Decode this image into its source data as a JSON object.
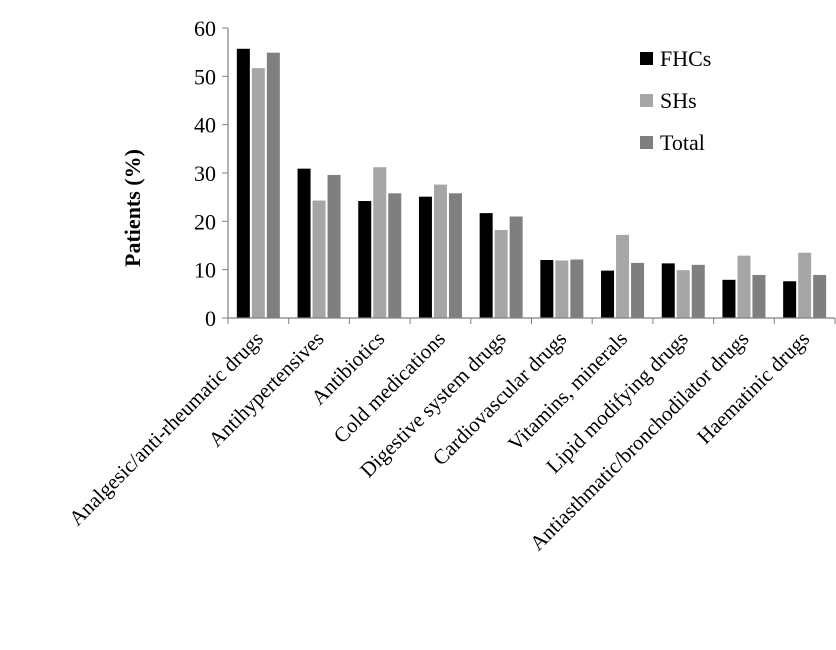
{
  "chart_data": {
    "type": "bar",
    "ylabel": "Patients (%)",
    "xlabel": "",
    "ylim": [
      0,
      60
    ],
    "yticks": [
      0,
      10,
      20,
      30,
      40,
      50,
      60
    ],
    "grid": false,
    "legend_position": "top-right",
    "categories": [
      "Analgesic/anti-rheumatic drugs",
      "Antihypertensives",
      "Antibiotics",
      "Cold medications",
      "Digestive system drugs",
      "Cardiovascular drugs",
      "Vitamins, minerals",
      "Lipid modifying drugs",
      "Antiasthmatic/bronchodilator drugs",
      "Haematinic drugs"
    ],
    "series": [
      {
        "name": "FHCs",
        "color": "#000000",
        "values": [
          55.7,
          30.9,
          24.2,
          25.1,
          21.7,
          12.0,
          9.8,
          11.3,
          7.9,
          7.6
        ]
      },
      {
        "name": "SHs",
        "color": "#a6a6a6",
        "values": [
          51.7,
          24.3,
          31.2,
          27.6,
          18.2,
          11.9,
          17.2,
          9.9,
          12.9,
          13.5
        ]
      },
      {
        "name": "Total",
        "color": "#7f7f7f",
        "values": [
          54.9,
          29.6,
          25.8,
          25.8,
          21.0,
          12.1,
          11.4,
          11.0,
          8.9,
          8.9
        ]
      }
    ]
  }
}
